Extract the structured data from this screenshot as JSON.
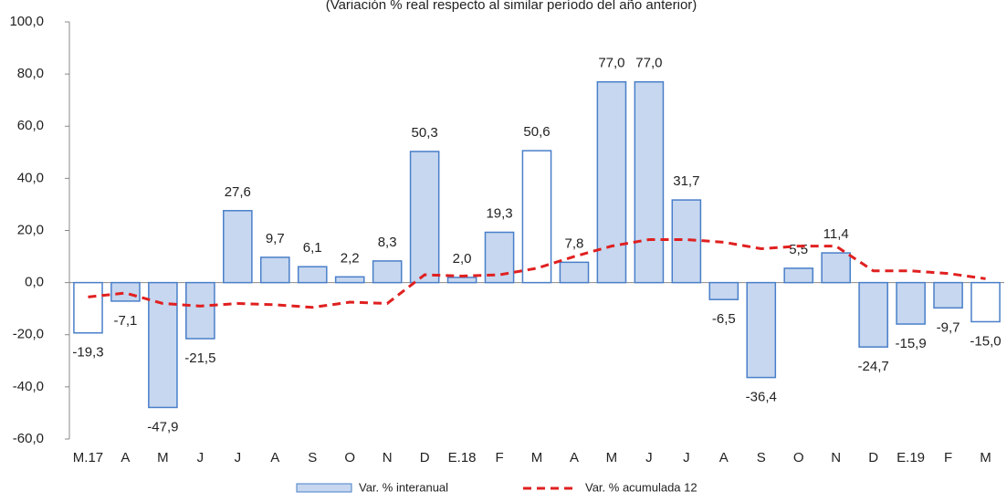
{
  "chart_data": {
    "type": "bar",
    "subtitle": "(Variación % real respecto al similar período del año anterior)",
    "categories": [
      "M.17",
      "A",
      "M",
      "J",
      "J",
      "A",
      "S",
      "O",
      "N",
      "D",
      "E.18",
      "F",
      "M",
      "A",
      "M",
      "J",
      "J",
      "A",
      "S",
      "O",
      "N",
      "D",
      "E.19",
      "F",
      "M"
    ],
    "series": [
      {
        "name": "Var. % interanual",
        "type": "bar",
        "color": "#c6d7ef",
        "edge_color": "#4a7fc9",
        "fill_colors": [
          "#ffffff",
          "#c6d7ef",
          "#c6d7ef",
          "#c6d7ef",
          "#c6d7ef",
          "#c6d7ef",
          "#c6d7ef",
          "#c6d7ef",
          "#c6d7ef",
          "#c6d7ef",
          "#c6d7ef",
          "#c6d7ef",
          "#ffffff",
          "#c6d7ef",
          "#c6d7ef",
          "#c6d7ef",
          "#c6d7ef",
          "#c6d7ef",
          "#c6d7ef",
          "#c6d7ef",
          "#c6d7ef",
          "#c6d7ef",
          "#c6d7ef",
          "#c6d7ef",
          "#ffffff"
        ],
        "values": [
          -19.3,
          -7.1,
          -47.9,
          -21.5,
          27.6,
          9.7,
          6.1,
          2.2,
          8.3,
          50.3,
          2.0,
          19.3,
          50.6,
          7.8,
          77.0,
          77.0,
          31.7,
          -6.5,
          -36.4,
          5.5,
          11.4,
          -24.7,
          -15.9,
          -9.7,
          -15.0
        ],
        "value_labels": [
          "-19,3",
          "-7,1",
          "-47,9",
          "-21,5",
          "27,6",
          "9,7",
          "6,1",
          "2,2",
          "8,3",
          "50,3",
          "2,0",
          "19,3",
          "50,6",
          "7,8",
          "77,0",
          "77,0",
          "31,7",
          "-6,5",
          "-36,4",
          "5,5",
          "11,4",
          "-24,7",
          "-15,9",
          "-9,7",
          "-15,0"
        ]
      },
      {
        "name": "Var. % acumulada 12",
        "type": "line",
        "color": "#e02020",
        "values": [
          -5.5,
          -4,
          -8,
          -9,
          -8,
          -8.5,
          -9.5,
          -7.5,
          -8,
          3,
          2.5,
          3,
          5.5,
          10,
          14,
          16.5,
          16.5,
          15.5,
          13,
          14,
          14,
          4.5,
          4.5,
          3.5,
          1.5
        ]
      }
    ],
    "ylim": [
      -60,
      100
    ],
    "yticks": [
      {
        "value": -60,
        "label": "-60,0"
      },
      {
        "value": -40,
        "label": "-40,0"
      },
      {
        "value": -20,
        "label": "-20,0"
      },
      {
        "value": 0,
        "label": "0,0"
      },
      {
        "value": 20,
        "label": "20,0"
      },
      {
        "value": 40,
        "label": "40,0"
      },
      {
        "value": 60,
        "label": "60,0"
      },
      {
        "value": 80,
        "label": "80,0"
      },
      {
        "value": 100,
        "label": "100,0"
      }
    ]
  }
}
